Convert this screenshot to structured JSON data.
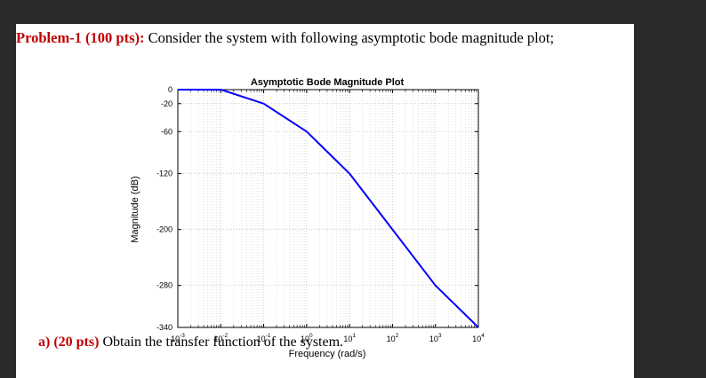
{
  "problem": {
    "heading": "Problem-1 (100 pts):",
    "text": " Consider the system with following asymptotic bode magnitude plot;"
  },
  "question": {
    "label": "a)",
    "points": "(20 pts)",
    "text": " Obtain the transfer function of the system."
  },
  "chart_data": {
    "type": "line",
    "title": "Asymptotic Bode Magnitude Plot",
    "xlabel": "Frequency (rad/s)",
    "ylabel": "Magnitude (dB)",
    "xscale": "log",
    "xlim": [
      0.001,
      10000
    ],
    "ylim": [
      -340,
      0
    ],
    "xticks": [
      {
        "value": 0.001,
        "base": "10",
        "exp": "-3"
      },
      {
        "value": 0.01,
        "base": "10",
        "exp": "-2"
      },
      {
        "value": 0.1,
        "base": "10",
        "exp": "-1"
      },
      {
        "value": 1,
        "base": "10",
        "exp": "0"
      },
      {
        "value": 10,
        "base": "10",
        "exp": "1"
      },
      {
        "value": 100,
        "base": "10",
        "exp": "2"
      },
      {
        "value": 1000,
        "base": "10",
        "exp": "3"
      },
      {
        "value": 10000,
        "base": "10",
        "exp": "4"
      }
    ],
    "yticks": [
      0,
      -20,
      -60,
      -120,
      -200,
      -280,
      -340
    ],
    "grid": true,
    "line_color": "#0000ff",
    "series": [
      {
        "x": [
          0.001,
          0.01,
          0.1,
          1,
          10,
          1000,
          10000
        ],
        "y": [
          0,
          0,
          -20,
          -60,
          -120,
          -280,
          -340
        ]
      }
    ]
  }
}
